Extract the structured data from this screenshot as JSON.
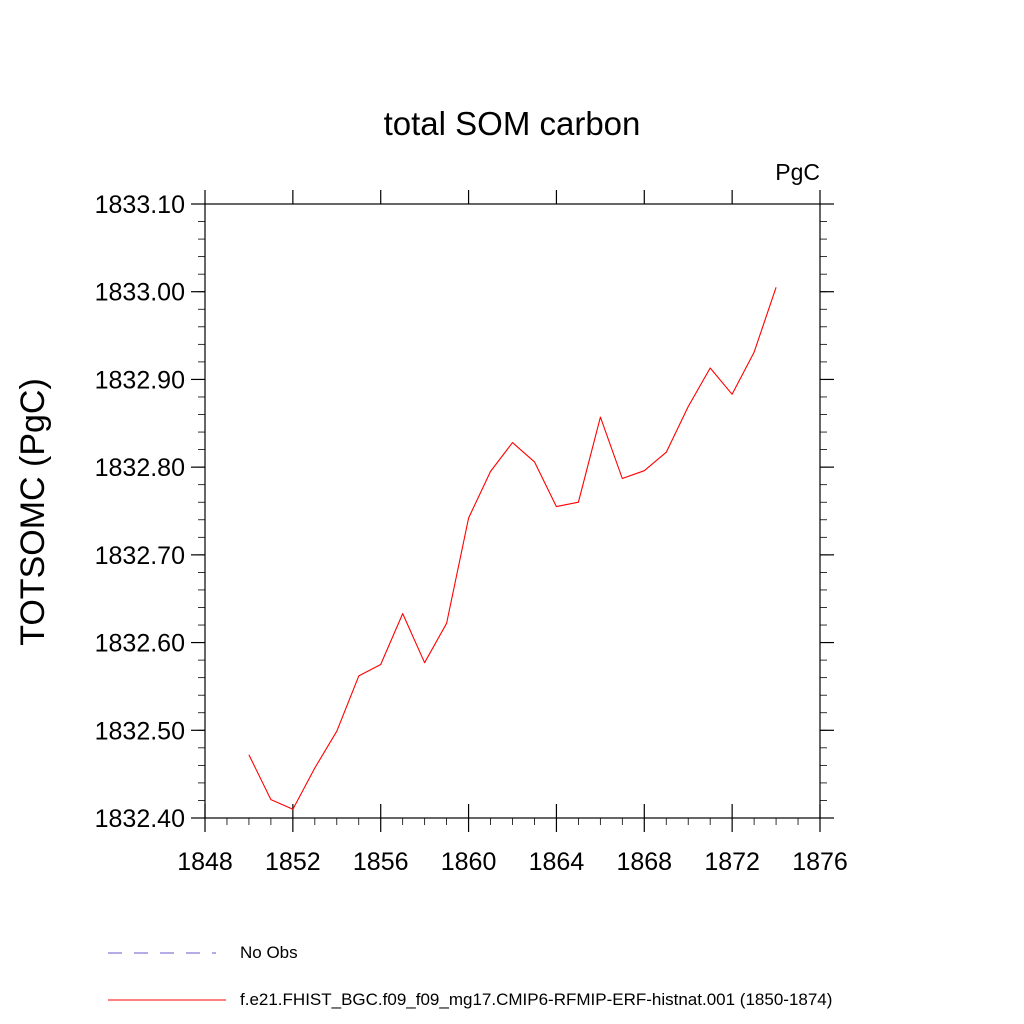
{
  "chart_data": {
    "type": "line",
    "title": "total SOM carbon",
    "units": "PgC",
    "ylabel": "TOTSOMC  (PgC)",
    "xlabel": "",
    "xlim": [
      1848,
      1876
    ],
    "ylim": [
      1832.4,
      1833.1
    ],
    "xticks": [
      1848,
      1852,
      1856,
      1860,
      1864,
      1868,
      1872,
      1876
    ],
    "yticks": [
      1832.4,
      1832.5,
      1832.6,
      1832.7,
      1832.8,
      1832.9,
      1833.0,
      1833.1
    ],
    "ytick_labels": [
      "1832.40",
      "1832.50",
      "1832.60",
      "1832.70",
      "1832.80",
      "1832.90",
      "1833.00",
      "1833.10"
    ],
    "series": [
      {
        "name": "f.e21.FHIST_BGC.f09_f09_mg17.CMIP6-RFMIP-ERF-histnat.001 (1850-1874)",
        "color": "#ff0000",
        "style": "solid",
        "x": [
          1850,
          1851,
          1852,
          1853,
          1854,
          1855,
          1856,
          1857,
          1858,
          1859,
          1860,
          1861,
          1862,
          1863,
          1864,
          1865,
          1866,
          1867,
          1868,
          1869,
          1870,
          1871,
          1872,
          1873,
          1874
        ],
        "values": [
          1832.472,
          1832.421,
          1832.41,
          1832.457,
          1832.499,
          1832.562,
          1832.575,
          1832.633,
          1832.577,
          1832.622,
          1832.742,
          1832.795,
          1832.828,
          1832.806,
          1832.755,
          1832.76,
          1832.857,
          1832.787,
          1832.796,
          1832.817,
          1832.869,
          1832.913,
          1832.883,
          1832.931,
          1833.005
        ]
      }
    ],
    "legend": [
      {
        "label": "No Obs",
        "color": "#6a5acd",
        "style": "dashed"
      },
      {
        "label": "f.e21.FHIST_BGC.f09_f09_mg17.CMIP6-RFMIP-ERF-histnat.001 (1850-1874)",
        "color": "#ff0000",
        "style": "solid"
      }
    ]
  }
}
